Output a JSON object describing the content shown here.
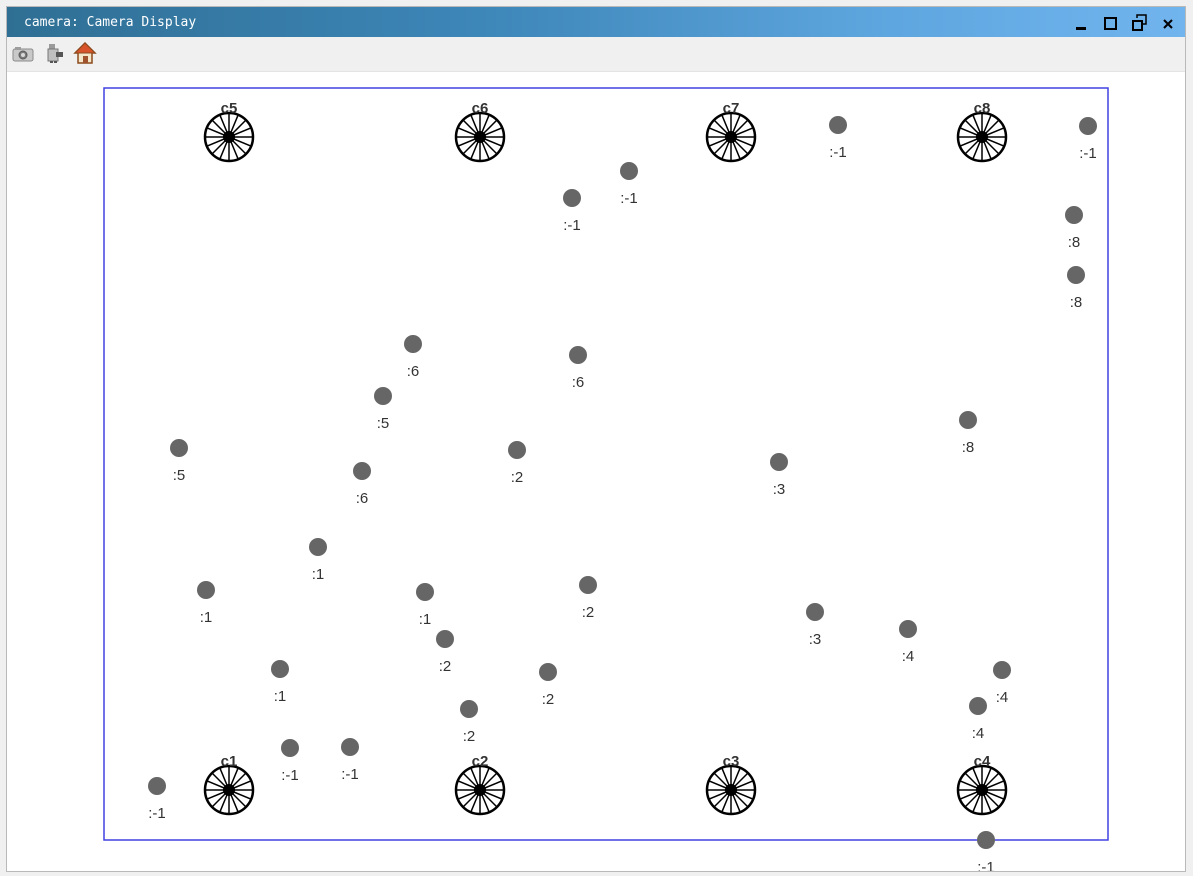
{
  "window": {
    "title": "camera: Camera Display",
    "controls": [
      "minimize-icon",
      "maximize-icon",
      "restore-icon",
      "close-icon"
    ]
  },
  "toolbar": {
    "buttons": [
      {
        "name": "camera-icon"
      },
      {
        "name": "robot-icon"
      },
      {
        "name": "home-icon"
      }
    ]
  },
  "colors": {
    "title_left": "#2f6f94",
    "title_right": "#71b4ee",
    "frame": "#4040e0",
    "target": "#666666",
    "camera": "#000000",
    "label": "#333333"
  },
  "cameras": [
    {
      "id": "c1",
      "label": "c1"
    },
    {
      "id": "c2",
      "label": "c2"
    },
    {
      "id": "c3",
      "label": "c3"
    },
    {
      "id": "c4",
      "label": "c4"
    },
    {
      "id": "c5",
      "label": "c5"
    },
    {
      "id": "c6",
      "label": "c6"
    },
    {
      "id": "c7",
      "label": "c7"
    },
    {
      "id": "c8",
      "label": "c8"
    }
  ],
  "targets": [
    {
      "label": ":-1"
    },
    {
      "label": ":-1"
    },
    {
      "label": ":-1"
    },
    {
      "label": ":-1"
    },
    {
      "label": ":8"
    },
    {
      "label": ":8"
    },
    {
      "label": ":6"
    },
    {
      "label": ":6"
    },
    {
      "label": ":5"
    },
    {
      "label": ":5"
    },
    {
      "label": ":2"
    },
    {
      "label": ":3"
    },
    {
      "label": ":8"
    },
    {
      "label": ":6"
    },
    {
      "label": ":1"
    },
    {
      "label": ":1"
    },
    {
      "label": ":1"
    },
    {
      "label": ":2"
    },
    {
      "label": ":3"
    },
    {
      "label": ":4"
    },
    {
      "label": ":2"
    },
    {
      "label": ":1"
    },
    {
      "label": ":2"
    },
    {
      "label": ":4"
    },
    {
      "label": ":4"
    },
    {
      "label": ":2"
    },
    {
      "label": ":-1"
    },
    {
      "label": ":-1"
    },
    {
      "label": ":-1"
    },
    {
      "label": ":-1"
    }
  ]
}
